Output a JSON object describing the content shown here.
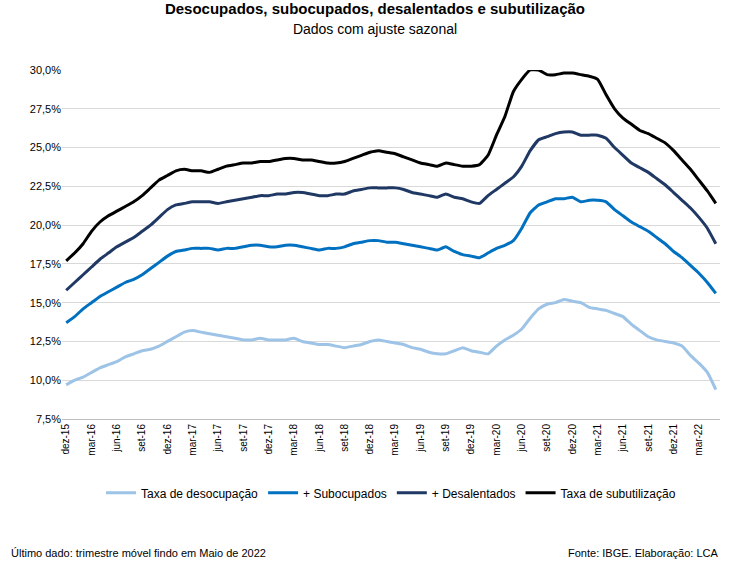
{
  "chart_data": {
    "type": "line",
    "title": "Desocupados, subocupados, desalentados e subutilização",
    "subtitle": "Dados com ajuste sazonal",
    "annotations": [
      "Último dado: trimestre móvel findo em Maio de 2022",
      "Fonte: IBGE. Elaboração: LCA"
    ],
    "categories": [
      "dez-15",
      null,
      null,
      "mar-16",
      null,
      null,
      "jun-16",
      null,
      null,
      "set-16",
      null,
      null,
      "dez-16",
      null,
      null,
      "mar-17",
      null,
      null,
      "jun-17",
      null,
      null,
      "set-17",
      null,
      null,
      "dez-17",
      null,
      null,
      "mar-18",
      null,
      null,
      "jun-18",
      null,
      null,
      "set-18",
      null,
      null,
      "dez-18",
      null,
      null,
      "mar-19",
      null,
      null,
      "jun-19",
      null,
      null,
      "set-19",
      null,
      null,
      "dez-19",
      null,
      null,
      "mar-20",
      null,
      null,
      "jun-20",
      null,
      null,
      "set-20",
      null,
      null,
      "dez-20",
      null,
      null,
      "mar-21",
      null,
      null,
      "jun-21",
      null,
      null,
      "set-21",
      null,
      null,
      "dez-21",
      null,
      null,
      "mar-22",
      null,
      null
    ],
    "series": [
      {
        "name": "Taxa de desocupação",
        "color": "#9dc3e6",
        "values": [
          9.7,
          10.0,
          10.2,
          10.5,
          10.8,
          11.0,
          11.2,
          11.5,
          11.7,
          11.9,
          12.0,
          12.2,
          12.5,
          12.8,
          13.1,
          13.2,
          13.1,
          13.0,
          12.9,
          12.8,
          12.7,
          12.6,
          12.6,
          12.7,
          12.6,
          12.6,
          12.6,
          12.7,
          12.5,
          12.4,
          12.3,
          12.3,
          12.2,
          12.1,
          12.2,
          12.3,
          12.5,
          12.6,
          12.5,
          12.4,
          12.3,
          12.1,
          12.0,
          11.8,
          11.7,
          11.7,
          11.9,
          12.1,
          11.9,
          11.8,
          11.7,
          12.2,
          12.6,
          12.9,
          13.3,
          14.0,
          14.6,
          14.9,
          15.0,
          15.2,
          15.1,
          15.0,
          14.7,
          14.6,
          14.5,
          14.3,
          14.1,
          13.6,
          13.2,
          12.8,
          12.6,
          12.5,
          12.4,
          12.2,
          11.6,
          11.1,
          10.5,
          9.4
        ]
      },
      {
        "name": "+ Subocupados",
        "color": "#0070c0",
        "values": [
          13.7,
          14.1,
          14.6,
          15.0,
          15.4,
          15.7,
          16.0,
          16.3,
          16.5,
          16.8,
          17.2,
          17.6,
          18.0,
          18.3,
          18.4,
          18.5,
          18.5,
          18.5,
          18.4,
          18.5,
          18.5,
          18.6,
          18.7,
          18.7,
          18.6,
          18.6,
          18.7,
          18.7,
          18.6,
          18.5,
          18.4,
          18.5,
          18.5,
          18.6,
          18.8,
          18.9,
          19.0,
          19.0,
          18.9,
          18.9,
          18.8,
          18.7,
          18.6,
          18.5,
          18.4,
          18.6,
          18.3,
          18.1,
          18.0,
          17.9,
          18.2,
          18.5,
          18.7,
          19.0,
          19.8,
          20.8,
          21.3,
          21.5,
          21.7,
          21.7,
          21.8,
          21.5,
          21.6,
          21.6,
          21.5,
          21.0,
          20.6,
          20.2,
          19.9,
          19.6,
          19.2,
          18.8,
          18.3,
          17.9,
          17.4,
          16.9,
          16.3,
          15.6
        ]
      },
      {
        "name": "+ Desalentados",
        "color": "#1f3864",
        "values": [
          15.8,
          16.3,
          16.8,
          17.3,
          17.8,
          18.2,
          18.6,
          18.9,
          19.2,
          19.6,
          20.0,
          20.5,
          21.0,
          21.3,
          21.4,
          21.5,
          21.5,
          21.5,
          21.4,
          21.5,
          21.6,
          21.7,
          21.8,
          21.9,
          21.9,
          22.0,
          22.0,
          22.1,
          22.1,
          22.0,
          21.9,
          21.9,
          22.0,
          22.0,
          22.2,
          22.3,
          22.4,
          22.4,
          22.4,
          22.4,
          22.3,
          22.1,
          22.0,
          21.9,
          21.8,
          22.0,
          21.8,
          21.7,
          21.5,
          21.4,
          21.9,
          22.3,
          22.7,
          23.1,
          23.8,
          24.8,
          25.5,
          25.7,
          25.9,
          26.0,
          26.0,
          25.8,
          25.8,
          25.8,
          25.6,
          25.0,
          24.5,
          24.0,
          23.7,
          23.4,
          23.0,
          22.6,
          22.1,
          21.6,
          21.1,
          20.5,
          19.8,
          18.8
        ]
      },
      {
        "name": "Taxa de subutilização",
        "color": "#000000",
        "values": [
          17.7,
          18.2,
          18.8,
          19.6,
          20.2,
          20.6,
          20.9,
          21.2,
          21.5,
          21.9,
          22.4,
          22.9,
          23.2,
          23.5,
          23.6,
          23.5,
          23.5,
          23.4,
          23.6,
          23.8,
          23.9,
          24.0,
          24.0,
          24.1,
          24.1,
          24.2,
          24.3,
          24.3,
          24.2,
          24.2,
          24.1,
          24.0,
          24.0,
          24.1,
          24.3,
          24.5,
          24.7,
          24.8,
          24.7,
          24.6,
          24.4,
          24.2,
          24.0,
          23.9,
          23.8,
          24.0,
          23.9,
          23.8,
          23.8,
          23.9,
          24.5,
          25.8,
          27.0,
          28.6,
          29.4,
          30.0,
          30.0,
          29.7,
          29.7,
          29.8,
          29.8,
          29.7,
          29.6,
          29.4,
          28.4,
          27.5,
          26.9,
          26.5,
          26.1,
          25.9,
          25.6,
          25.3,
          24.8,
          24.2,
          23.6,
          22.9,
          22.2,
          21.4
        ]
      }
    ],
    "ylim": [
      7.5,
      30.0
    ],
    "yticks": [
      {
        "value": 7.5,
        "label": "7,5%"
      },
      {
        "value": 10.0,
        "label": "10,0%"
      },
      {
        "value": 12.5,
        "label": "12,5%"
      },
      {
        "value": 15.0,
        "label": "15,0%"
      },
      {
        "value": 17.5,
        "label": "17,5%"
      },
      {
        "value": 20.0,
        "label": "20,0%"
      },
      {
        "value": 22.5,
        "label": "22,5%"
      },
      {
        "value": 25.0,
        "label": "25,0%"
      },
      {
        "value": 27.5,
        "label": "27,5%"
      },
      {
        "value": 30.0,
        "label": "30,0%"
      }
    ],
    "grid": true,
    "legend": "bottom"
  }
}
